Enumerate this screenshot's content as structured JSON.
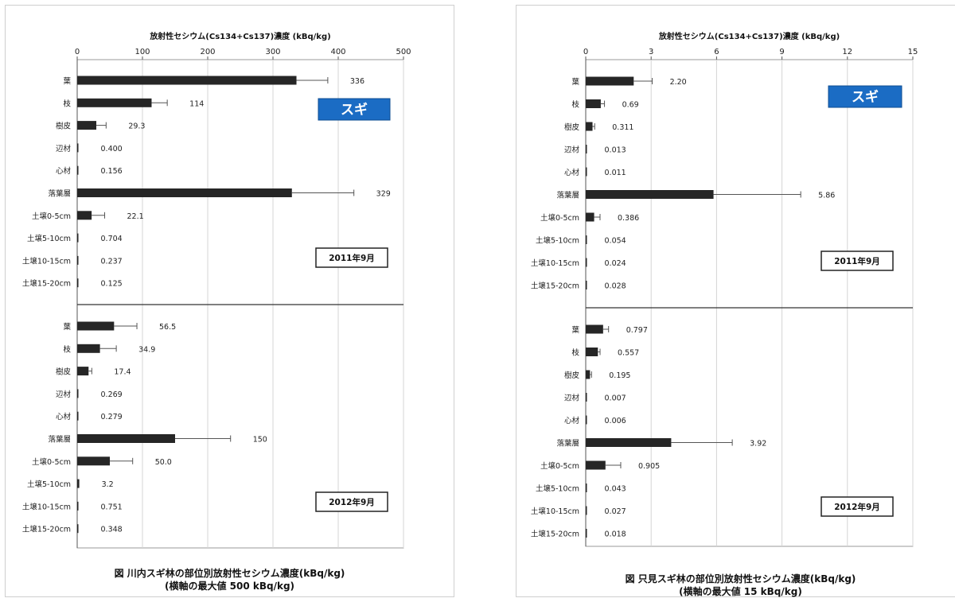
{
  "chart_data": [
    {
      "type": "bar",
      "orientation": "horizontal",
      "title": "放射性セシウム(Cs134+Cs137)濃度 (kBq/kg)",
      "species_label": "スギ",
      "xlim": [
        0,
        500
      ],
      "xticks": [
        0,
        100,
        200,
        300,
        400,
        500
      ],
      "grid": true,
      "caption_line1": "図 川内スギ林の部位別放射性セシウム濃度(kBq/kg)",
      "caption_line2": "(横軸の最大値 500 kBq/kg)",
      "groups": [
        {
          "period": "2011年9月",
          "categories": [
            "葉",
            "枝",
            "樹皮",
            "辺材",
            "心材",
            "落葉層",
            "土壌0-5cm",
            "土壌5-10cm",
            "土壌10-15cm",
            "土壌15-20cm"
          ],
          "values": [
            336,
            114,
            29.3,
            0.4,
            0.156,
            329,
            22.1,
            0.704,
            0.237,
            0.125
          ],
          "errors": [
            48,
            24,
            15,
            0,
            0,
            95,
            20,
            0,
            0,
            0
          ],
          "labels": [
            "336",
            "114",
            "29.3",
            "0.400",
            "0.156",
            "329",
            "22.1",
            "0.704",
            "0.237",
            "0.125"
          ]
        },
        {
          "period": "2012年9月",
          "categories": [
            "葉",
            "枝",
            "樹皮",
            "辺材",
            "心材",
            "落葉層",
            "土壌0-5cm",
            "土壌5-10cm",
            "土壌10-15cm",
            "土壌15-20cm"
          ],
          "values": [
            56.5,
            34.9,
            17.4,
            0.269,
            0.279,
            150,
            50,
            3.2,
            0.751,
            0.348
          ],
          "errors": [
            35,
            25,
            5,
            0,
            0,
            85,
            35,
            0,
            0,
            0
          ],
          "labels": [
            "56.5",
            "34.9",
            "17.4",
            "0.269",
            "0.279",
            "150",
            "50.0",
            "3.2",
            "0.751",
            "0.348"
          ]
        }
      ]
    },
    {
      "type": "bar",
      "orientation": "horizontal",
      "title": "放射性セシウム(Cs134+Cs137)濃度 (kBq/kg)",
      "species_label": "スギ",
      "xlim": [
        0,
        15
      ],
      "xticks": [
        0,
        3,
        6,
        9,
        12,
        15
      ],
      "grid": true,
      "caption_line1": "図 只見スギ林の部位別放射性セシウム濃度(kBq/kg)",
      "caption_line2": "(横軸の最大値 15 kBq/kg)",
      "groups": [
        {
          "period": "2011年9月",
          "categories": [
            "葉",
            "枝",
            "樹皮",
            "辺材",
            "心材",
            "落葉層",
            "土壌0-5cm",
            "土壌5-10cm",
            "土壌10-15cm",
            "土壌15-20cm"
          ],
          "values": [
            2.2,
            0.69,
            0.311,
            0.013,
            0.011,
            5.86,
            0.386,
            0.054,
            0.024,
            0.028
          ],
          "errors": [
            0.85,
            0.17,
            0.1,
            0,
            0,
            4.0,
            0.27,
            0,
            0,
            0
          ],
          "labels": [
            "2.20",
            "0.69",
            "0.311",
            "0.013",
            "0.011",
            "5.86",
            "0.386",
            "0.054",
            "0.024",
            "0.028"
          ]
        },
        {
          "period": "2012年9月",
          "categories": [
            "葉",
            "枝",
            "樹皮",
            "辺材",
            "心材",
            "落葉層",
            "土壌0-5cm",
            "土壌5-10cm",
            "土壌10-15cm",
            "土壌15-20cm"
          ],
          "values": [
            0.797,
            0.557,
            0.195,
            0.007,
            0.006,
            3.92,
            0.905,
            0.043,
            0.027,
            0.018
          ],
          "errors": [
            0.25,
            0.1,
            0.07,
            0,
            0,
            2.8,
            0.7,
            0,
            0,
            0
          ],
          "labels": [
            "0.797",
            "0.557",
            "0.195",
            "0.007",
            "0.006",
            "3.92",
            "0.905",
            "0.043",
            "0.027",
            "0.018"
          ]
        }
      ]
    }
  ]
}
